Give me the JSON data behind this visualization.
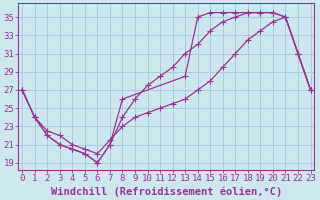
{
  "xlabel": "Windchill (Refroidissement éolien,°C)",
  "background_color": "#cce8ee",
  "grid_color": "#aaccd8",
  "line_color": "#993399",
  "x_ticks": [
    0,
    1,
    2,
    3,
    4,
    5,
    6,
    7,
    8,
    9,
    10,
    11,
    12,
    13,
    14,
    15,
    16,
    17,
    18,
    19,
    20,
    21,
    22,
    23
  ],
  "y_ticks": [
    19,
    21,
    23,
    25,
    27,
    29,
    31,
    33,
    35
  ],
  "xlim": [
    -0.3,
    23.3
  ],
  "ylim": [
    18.2,
    36.5
  ],
  "curve_a_x": [
    0,
    1,
    2,
    3,
    4,
    5,
    6,
    7,
    8,
    13,
    14,
    15,
    16,
    17,
    18,
    19,
    20,
    21,
    22,
    23
  ],
  "curve_a_y": [
    27,
    24,
    22,
    21,
    20.5,
    20,
    19,
    21,
    26,
    28.5,
    35.0,
    35.5,
    35.5,
    35.5,
    35.5,
    35.5,
    35.5,
    35.0,
    31,
    27
  ],
  "curve_b_x": [
    0,
    1,
    2,
    3,
    4,
    5,
    6,
    7,
    8,
    9,
    10,
    11,
    12,
    13,
    14,
    15,
    16,
    17,
    18,
    19,
    20,
    21,
    22,
    23
  ],
  "curve_b_y": [
    27,
    24.0,
    22.5,
    22.0,
    21.0,
    20.5,
    20,
    21.5,
    23,
    24,
    24.5,
    25,
    25.5,
    26,
    27,
    28,
    29.5,
    31,
    32.5,
    33.5,
    34.5,
    35.0,
    31,
    27
  ],
  "curve_c_x": [
    0,
    1,
    2,
    3,
    4,
    5,
    6,
    7,
    8,
    9,
    10,
    11,
    12,
    13,
    14,
    15,
    16,
    17,
    18,
    19,
    20,
    21,
    22,
    23
  ],
  "curve_c_y": [
    27,
    24,
    22,
    21,
    20.5,
    20,
    19,
    21,
    24,
    26,
    27.5,
    28.5,
    29.5,
    31,
    32,
    33.5,
    34.5,
    35,
    35.5,
    35.5,
    35.5,
    35,
    31,
    27
  ],
  "tick_fontsize": 6.5,
  "xlabel_fontsize": 7.5
}
